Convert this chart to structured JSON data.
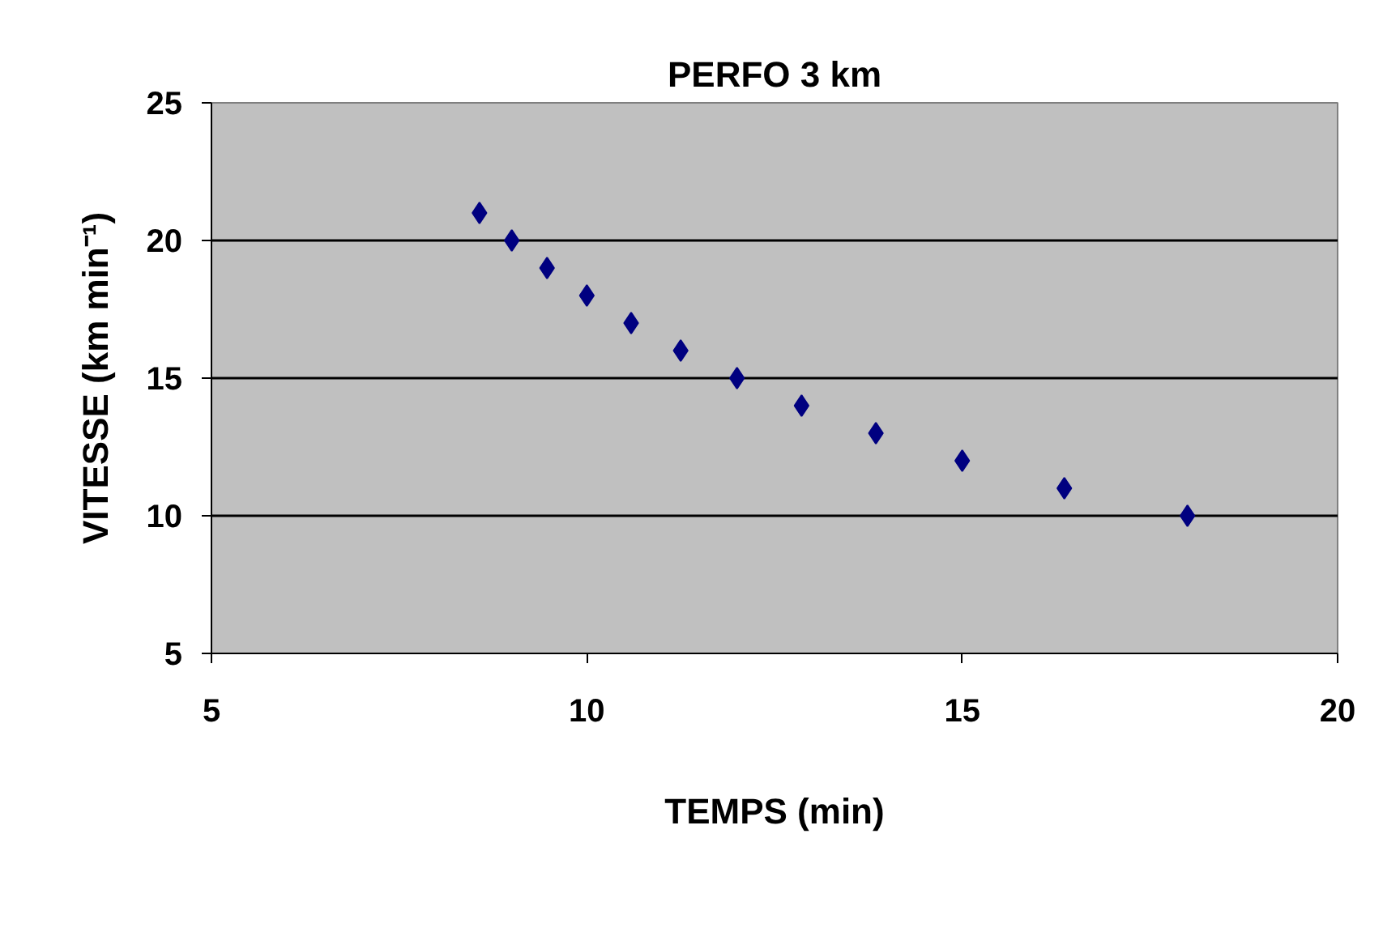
{
  "chart_data": {
    "type": "scatter",
    "title": "PERFO 3 km",
    "xlabel": "TEMPS (min)",
    "ylabel": "VITESSE (km min⁻¹)",
    "x": [
      8.57,
      9.0,
      9.47,
      10.0,
      10.59,
      11.25,
      12.0,
      12.86,
      13.85,
      15.0,
      16.36,
      18.0
    ],
    "series": [
      {
        "color": "#000080",
        "values": [
          21,
          20,
          19,
          18,
          17,
          16,
          15,
          14,
          13,
          12,
          11,
          10
        ]
      }
    ],
    "xlim": [
      5,
      20
    ],
    "xticks": [
      5,
      10,
      15,
      20
    ],
    "ylim": [
      5,
      25
    ],
    "yticks": [
      5,
      10,
      15,
      20,
      25
    ],
    "grid": "y",
    "marker": "diamond"
  }
}
